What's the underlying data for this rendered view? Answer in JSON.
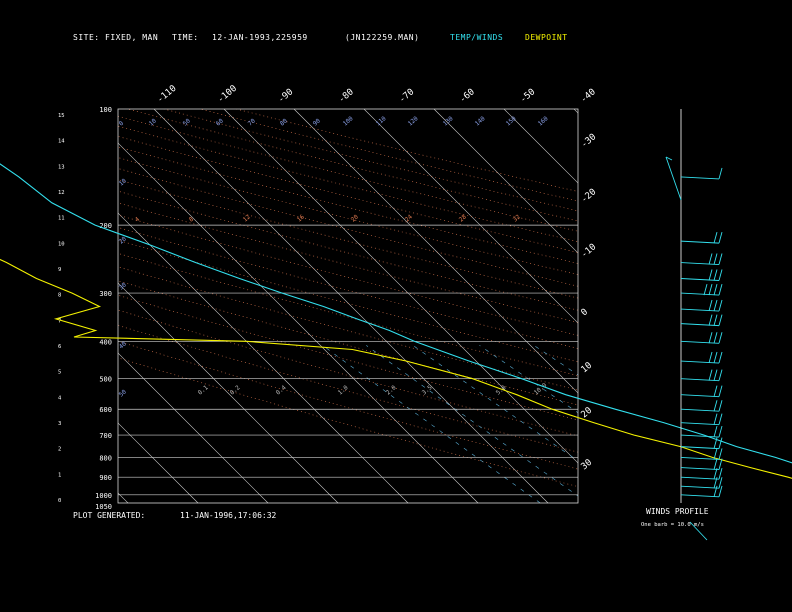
{
  "header": {
    "site_label": "SITE:",
    "site_value": "FIXED, MAN",
    "time_label": "TIME:",
    "time_value": "12-JAN-1993,225959",
    "file_id": "(JN122259.MAN)",
    "legend_temp": "TEMP/WINDS",
    "legend_dew": "DEWPOINT"
  },
  "footer": {
    "generated_label": "PLOT GENERATED:",
    "generated_value": "11-JAN-1996,17:06:32",
    "winds_profile": "WINDS PROFILE",
    "barb_note": "One barb = 10.0 m/s"
  },
  "colors": {
    "temp": "#33e0ee",
    "dewpoint": "#f4f200",
    "isotherm": "#cfcfcf",
    "isobar": "#cfcfcf",
    "dry_adiabat": "#e07a50",
    "moist_adiabat": "#d08a60",
    "mixing_ratio": "#5ab0d8",
    "text": "#ffffff"
  },
  "chart_data": {
    "type": "line",
    "top_temp_labels": [
      "-110",
      "-100",
      "-90",
      "-80",
      "-70",
      "-60",
      "-50",
      "-40"
    ],
    "right_temp_labels": [
      "-30",
      "-20",
      "-10",
      "0",
      "10",
      "20",
      "30"
    ],
    "pressure_labels": [
      "100",
      "200",
      "300",
      "400",
      "500",
      "600",
      "700",
      "800",
      "900",
      "1000",
      "1050"
    ],
    "height_labels": [
      "15",
      "14",
      "13",
      "12",
      "11",
      "10",
      "9",
      "8",
      "7",
      "6",
      "5",
      "4",
      "3",
      "2",
      "1",
      "0"
    ],
    "top_left_mixing_labels": [
      "0",
      "10",
      "50",
      "60",
      "70",
      "80",
      "90",
      "100",
      "110",
      "120",
      "130",
      "140",
      "150",
      "160"
    ],
    "theta_labels": [
      "4",
      "8",
      "12",
      "16",
      "20",
      "24",
      "28",
      "32"
    ],
    "mixing_ratio_labels": [
      "0.1",
      "0.2",
      "0.4",
      "1.0",
      "2.0",
      "3.5",
      "5.0",
      "10.0"
    ],
    "left_mixing_labels": [
      "10",
      "20",
      "30",
      "40",
      "50"
    ],
    "series": [
      {
        "name": "TEMP/WINDS",
        "pressure": [
          100,
          110,
          125,
          150,
          175,
          200,
          225,
          250,
          275,
          300,
          325,
          350,
          375,
          400,
          450,
          500,
          550,
          600,
          650,
          700,
          750,
          800,
          850,
          900,
          950,
          1000,
          1050
        ],
        "temp": [
          -73,
          -72,
          -71,
          -69,
          -68,
          -65,
          -60,
          -56,
          -52,
          -48,
          -44,
          -41,
          -38,
          -36,
          -31,
          -26,
          -22,
          -17,
          -12,
          -8,
          -5,
          -1,
          2,
          4,
          8,
          13,
          17
        ]
      },
      {
        "name": "DEWPOINT",
        "pressure": [
          100,
          125,
          150,
          175,
          200,
          225,
          250,
          275,
          300,
          325,
          350,
          375,
          390,
          400,
          420,
          450,
          500,
          550,
          600,
          650,
          700,
          750,
          800,
          850,
          900,
          950,
          1000,
          1050
        ],
        "dewpoint": [
          -97,
          -96,
          -94,
          -92,
          -88,
          -86,
          -83,
          -81,
          -78,
          -76,
          -84,
          -80,
          -84,
          -60,
          -46,
          -40,
          -33,
          -29,
          -26,
          -22,
          -18,
          -13,
          -10,
          -6,
          -2,
          1,
          5,
          10
        ]
      }
    ],
    "winds": [
      {
        "pressure": 150,
        "speed_barbs": 1,
        "dir": 330
      },
      {
        "pressure": 220,
        "speed_barbs": 2,
        "dir": 280
      },
      {
        "pressure": 250,
        "speed_barbs": 3,
        "dir": 270
      },
      {
        "pressure": 275,
        "speed_barbs": 3,
        "dir": 265
      },
      {
        "pressure": 300,
        "speed_barbs": 4,
        "dir": 260
      },
      {
        "pressure": 330,
        "speed_barbs": 3,
        "dir": 255
      },
      {
        "pressure": 360,
        "speed_barbs": 3,
        "dir": 250
      },
      {
        "pressure": 400,
        "speed_barbs": 3,
        "dir": 250
      },
      {
        "pressure": 450,
        "speed_barbs": 3,
        "dir": 245
      },
      {
        "pressure": 500,
        "speed_barbs": 3,
        "dir": 250
      },
      {
        "pressure": 550,
        "speed_barbs": 2,
        "dir": 255
      },
      {
        "pressure": 600,
        "speed_barbs": 2,
        "dir": 255
      },
      {
        "pressure": 650,
        "speed_barbs": 2,
        "dir": 260
      },
      {
        "pressure": 700,
        "speed_barbs": 2,
        "dir": 255
      },
      {
        "pressure": 750,
        "speed_barbs": 2,
        "dir": 250
      },
      {
        "pressure": 800,
        "speed_barbs": 2,
        "dir": 250
      },
      {
        "pressure": 850,
        "speed_barbs": 2,
        "dir": 245
      },
      {
        "pressure": 900,
        "speed_barbs": 2,
        "dir": 245
      },
      {
        "pressure": 950,
        "speed_barbs": 2,
        "dir": 240
      },
      {
        "pressure": 1000,
        "speed_barbs": 2,
        "dir": 240
      }
    ]
  }
}
